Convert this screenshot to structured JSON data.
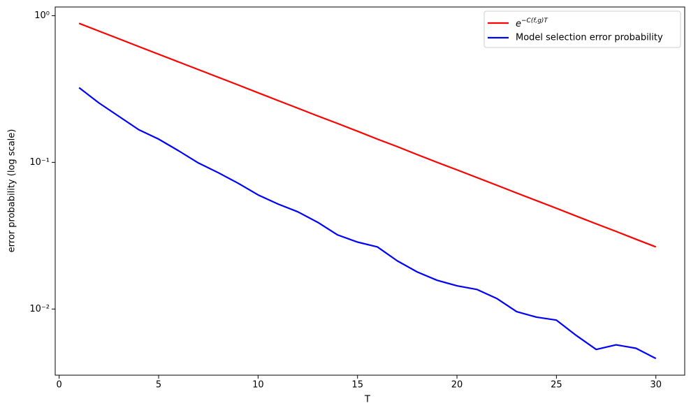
{
  "chart_data": {
    "type": "line",
    "xlabel": "T",
    "ylabel": "error probability (log scale)",
    "x": [
      1,
      2,
      3,
      4,
      5,
      6,
      7,
      8,
      9,
      10,
      11,
      12,
      13,
      14,
      15,
      16,
      17,
      18,
      19,
      20,
      21,
      22,
      23,
      24,
      25,
      26,
      27,
      28,
      29,
      30
    ],
    "series": [
      {
        "name": "e^{−C(f,g)T}",
        "color": "#ff0000",
        "values": [
          0.886,
          0.785,
          0.696,
          0.616,
          0.546,
          0.484,
          0.429,
          0.38,
          0.337,
          0.298,
          0.264,
          0.234,
          0.207,
          0.184,
          0.163,
          0.144,
          0.128,
          0.113,
          0.1,
          0.0889,
          0.0788,
          0.0698,
          0.0618,
          0.0548,
          0.0486,
          0.043,
          0.0381,
          0.0338,
          0.0299,
          0.0265
        ]
      },
      {
        "name": "Model selection error probability",
        "color": "#0000ff",
        "values": [
          0.323,
          0.254,
          0.206,
          0.167,
          0.144,
          0.12,
          0.099,
          0.085,
          0.072,
          0.06,
          0.052,
          0.046,
          0.039,
          0.032,
          0.0286,
          0.0265,
          0.0213,
          0.0179,
          0.0157,
          0.0144,
          0.0136,
          0.0118,
          0.0096,
          0.0088,
          0.0084,
          0.0066,
          0.0053,
          0.0057,
          0.0054,
          0.0046
        ]
      }
    ],
    "xlim": [
      -0.2,
      31.45
    ],
    "xticks": [
      0,
      5,
      10,
      15,
      20,
      25,
      30
    ],
    "ylim": [
      0.00354,
      1.146
    ],
    "yscale": "log",
    "yticks": [
      {
        "value": 1,
        "label": "10⁰"
      },
      {
        "value": 0.1,
        "label": "10⁻¹"
      },
      {
        "value": 0.01,
        "label": "10⁻²"
      }
    ],
    "legend": "upper right"
  }
}
